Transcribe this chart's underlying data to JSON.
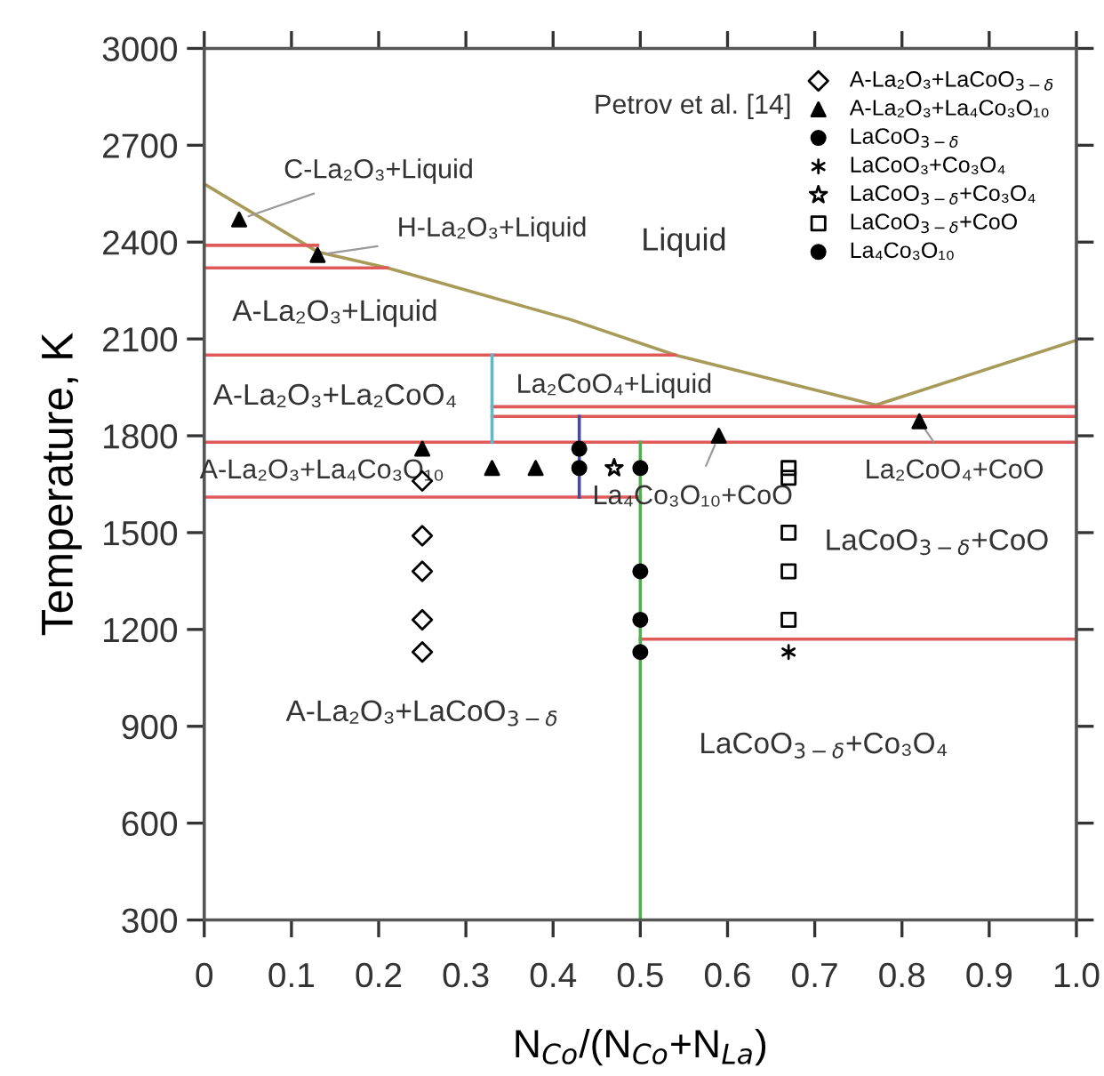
{
  "chart_data": {
    "type": "scatter",
    "xlabel": "N$_{Co}$/(N$_{Co}$+N$_{La}$)",
    "ylabel": "Temperature, K",
    "xlim": [
      0,
      1
    ],
    "xticks": [
      0,
      0.1,
      0.2,
      0.3,
      0.4,
      0.5,
      0.6,
      0.7,
      0.8,
      0.9,
      {
        "value": 1,
        "label": "1.0"
      }
    ],
    "ylim": [
      300,
      3000
    ],
    "yticks": [
      300,
      600,
      900,
      1200,
      1500,
      1800,
      2100,
      2400,
      2700,
      3000
    ],
    "grid": false,
    "legend": "top right",
    "series": [
      {
        "type": "line",
        "color": "#a89a58",
        "x": [
          0,
          0.13,
          0.21,
          0.42,
          0.54,
          0.77,
          1.0
        ],
        "values": [
          2580,
          2370,
          2320,
          2160,
          2050,
          1895,
          2096
        ]
      },
      {
        "type": "line",
        "color": "#e05a5a",
        "x": [
          0,
          0.13
        ],
        "values": [
          2390,
          2390
        ]
      },
      {
        "type": "line",
        "color": "#e05a5a",
        "x": [
          0,
          0.21
        ],
        "values": [
          2320,
          2320
        ]
      },
      {
        "type": "line",
        "color": "#e05a5a",
        "x": [
          0,
          0.54
        ],
        "values": [
          2050,
          2050
        ]
      },
      {
        "type": "line",
        "color": "#e05a5a",
        "x": [
          0.33,
          1.0
        ],
        "values": [
          1890,
          1890
        ]
      },
      {
        "type": "line",
        "color": "#e05a5a",
        "x": [
          0.33,
          1.0
        ],
        "values": [
          1860,
          1860
        ]
      },
      {
        "type": "line",
        "color": "#e05a5a",
        "x": [
          0,
          1.0
        ],
        "values": [
          1780,
          1780
        ]
      },
      {
        "type": "line",
        "color": "#e05a5a",
        "x": [
          0,
          0.5
        ],
        "values": [
          1610,
          1610
        ]
      },
      {
        "type": "line",
        "color": "#e05a5a",
        "x": [
          0.5,
          1.0
        ],
        "values": [
          1170,
          1170
        ]
      },
      {
        "type": "line",
        "color": "#60b8c8",
        "x": [
          0.33,
          0.33
        ],
        "values": [
          1780,
          2050
        ]
      },
      {
        "type": "line",
        "color": "#4a4a9a",
        "x": [
          0.43,
          0.43
        ],
        "values": [
          1610,
          1860
        ]
      },
      {
        "type": "line",
        "color": "#50b050",
        "x": [
          0.5,
          0.5
        ],
        "values": [
          300,
          1780
        ]
      },
      {
        "name": "A-La₂O₃+LaCoO$_{3−δ}$",
        "marker": "diamond",
        "color": "#000000",
        "x": [
          0.25,
          0.25,
          0.25,
          0.25,
          0.25
        ],
        "values": [
          1660,
          1490,
          1380,
          1230,
          1130
        ]
      },
      {
        "name": "A-La₂O₃+La₄Co₃O₁₀",
        "marker": "triangle",
        "color": "#000000",
        "x": [
          0.04,
          0.13,
          0.25,
          0.33,
          0.38,
          0.59,
          0.82
        ],
        "values": [
          2470,
          2360,
          1760,
          1700,
          1700,
          1800,
          1845
        ]
      },
      {
        "name": "LaCoO$_{3−δ}$",
        "marker": "circle",
        "color": "#000000",
        "x": [
          0.5,
          0.5,
          0.5,
          0.5
        ],
        "values": [
          1700,
          1380,
          1230,
          1130
        ]
      },
      {
        "name": "LaCoO₃+Co₃O₄",
        "marker": "cross",
        "color": "#000000",
        "x": [
          0.67
        ],
        "values": [
          1130
        ]
      },
      {
        "name": "LaCoO$_{3−δ}$+Co₃O₄",
        "marker": "star",
        "color": "#000000",
        "x": [
          0.47
        ],
        "values": [
          1700
        ]
      },
      {
        "name": "LaCoO$_{3−δ}$+CoO",
        "marker": "square",
        "color": "#000000",
        "x": [
          0.67,
          0.67,
          0.67,
          0.67,
          0.67
        ],
        "values": [
          1700,
          1670,
          1500,
          1380,
          1230
        ]
      },
      {
        "name": "La₄Co₃O₁₀",
        "marker": "circle",
        "color": "#000000",
        "x": [
          0.43,
          0.43
        ],
        "values": [
          1760,
          1700
        ]
      }
    ],
    "annotations": [
      "Petrov et al. [14]",
      "Liquid",
      {
        "text": "C-La₂O₃+Liquid",
        "x": 0.04,
        "y": 2470
      },
      {
        "text": "H-La₂O₃+Liquid",
        "x": 0.13,
        "y": 2360
      },
      "A-La₂O₃+Liquid",
      "A-La₂O₃+La₂CoO₄",
      "La₂CoO₄+Liquid",
      "A-La₂O₃+La₄Co₃O₁₀",
      {
        "text": "La₄Co₃O₁₀+CoO",
        "x": 0.59,
        "y": 1800
      },
      {
        "text": "La₂CoO₄+CoO",
        "x": 0.82,
        "y": 1845
      },
      "LaCoO$_{3−δ}$+CoO",
      "A-La₂O₃+LaCoO$_{3−δ}$",
      "LaCoO$_{3−δ}$+Co₃O₄"
    ]
  }
}
